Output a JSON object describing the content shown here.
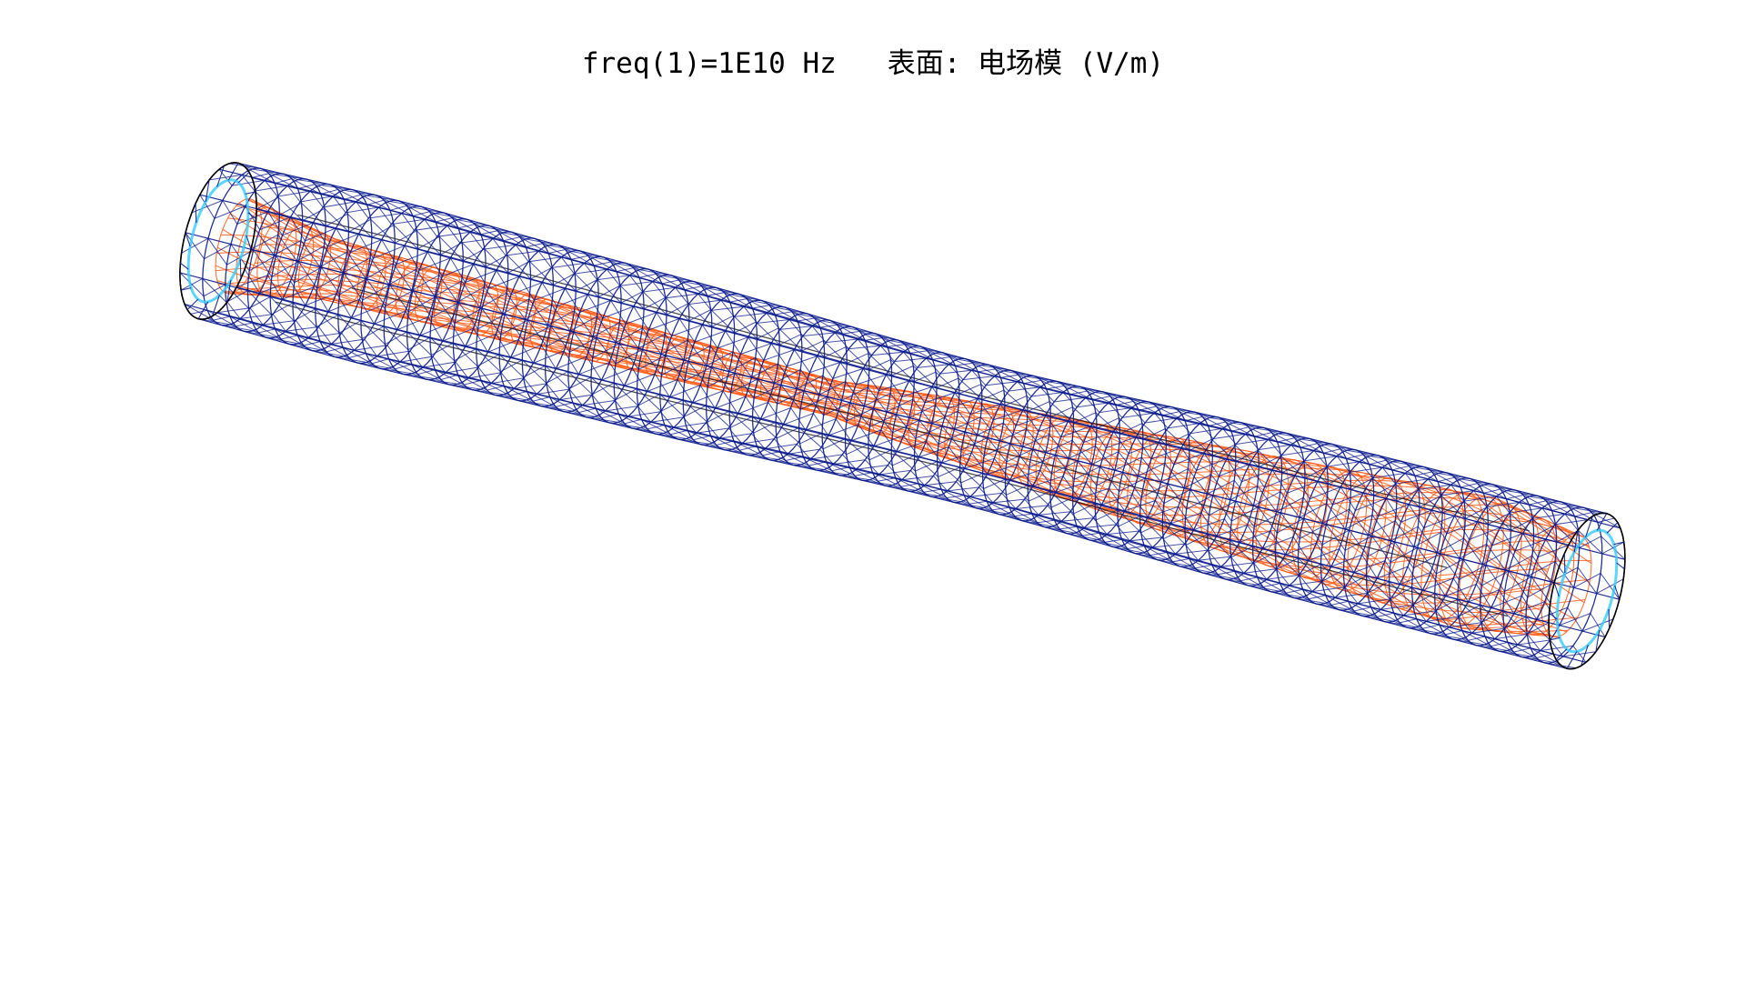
{
  "plot": {
    "title": "freq(1)=1E10 Hz   表面: 电场模 (V/m)"
  },
  "colors": {
    "mesh_outer": "#0a1a8c",
    "mesh_inner": "#ff5a14",
    "edge": "#000000",
    "field_high": "#33ccff",
    "background": "#ffffff"
  }
}
